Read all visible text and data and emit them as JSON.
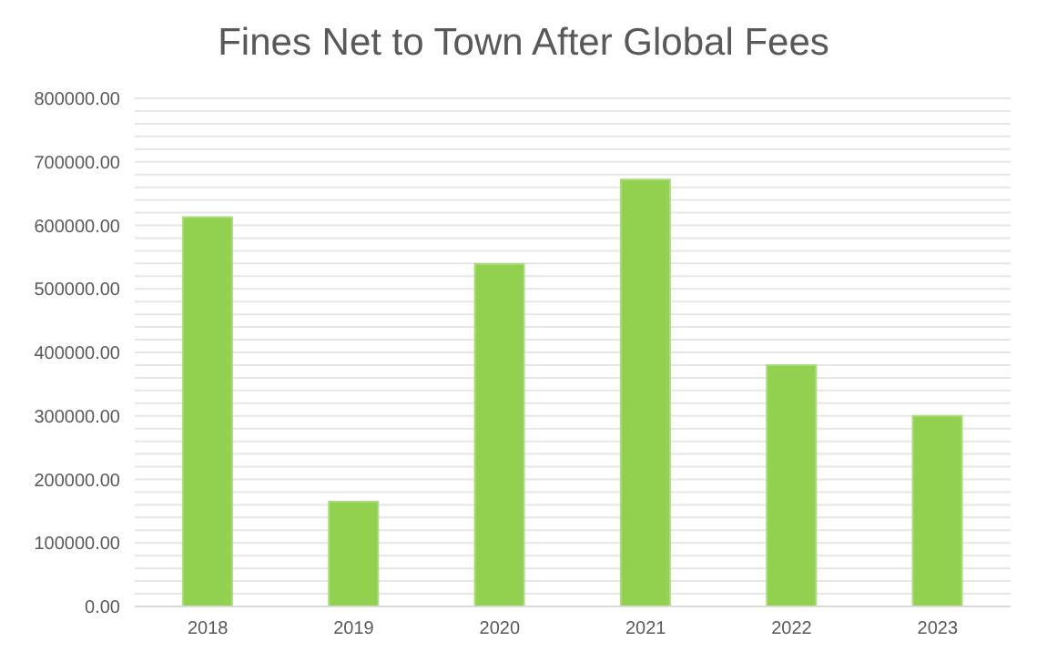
{
  "chart_data": {
    "type": "bar",
    "title": "Fines Net to Town After Global Fees",
    "categories": [
      "2018",
      "2019",
      "2020",
      "2021",
      "2022",
      "2023"
    ],
    "values": [
      613000,
      165000,
      539000,
      672000,
      380000,
      300000
    ],
    "color": "#92d050",
    "ylim": [
      0,
      800000
    ],
    "yticks": [
      {
        "value": 0,
        "label": "0.00"
      },
      {
        "value": 20000,
        "label": null
      },
      {
        "value": 40000,
        "label": null
      },
      {
        "value": 60000,
        "label": null
      },
      {
        "value": 80000,
        "label": null
      },
      {
        "value": 100000,
        "label": "100000.00"
      },
      {
        "value": 120000,
        "label": null
      },
      {
        "value": 140000,
        "label": null
      },
      {
        "value": 160000,
        "label": null
      },
      {
        "value": 180000,
        "label": null
      },
      {
        "value": 200000,
        "label": "200000.00"
      },
      {
        "value": 220000,
        "label": null
      },
      {
        "value": 240000,
        "label": null
      },
      {
        "value": 260000,
        "label": null
      },
      {
        "value": 280000,
        "label": null
      },
      {
        "value": 300000,
        "label": "300000.00"
      },
      {
        "value": 320000,
        "label": null
      },
      {
        "value": 340000,
        "label": null
      },
      {
        "value": 360000,
        "label": null
      },
      {
        "value": 380000,
        "label": null
      },
      {
        "value": 400000,
        "label": "400000.00"
      },
      {
        "value": 420000,
        "label": null
      },
      {
        "value": 440000,
        "label": null
      },
      {
        "value": 460000,
        "label": null
      },
      {
        "value": 480000,
        "label": null
      },
      {
        "value": 500000,
        "label": "500000.00"
      },
      {
        "value": 520000,
        "label": null
      },
      {
        "value": 540000,
        "label": null
      },
      {
        "value": 560000,
        "label": null
      },
      {
        "value": 580000,
        "label": null
      },
      {
        "value": 600000,
        "label": "600000.00"
      },
      {
        "value": 620000,
        "label": null
      },
      {
        "value": 640000,
        "label": null
      },
      {
        "value": 660000,
        "label": null
      },
      {
        "value": 680000,
        "label": null
      },
      {
        "value": 700000,
        "label": "700000.00"
      },
      {
        "value": 720000,
        "label": null
      },
      {
        "value": 740000,
        "label": null
      },
      {
        "value": 760000,
        "label": null
      },
      {
        "value": 780000,
        "label": null
      },
      {
        "value": 800000,
        "label": "800000.00"
      }
    ],
    "grid": "y"
  }
}
